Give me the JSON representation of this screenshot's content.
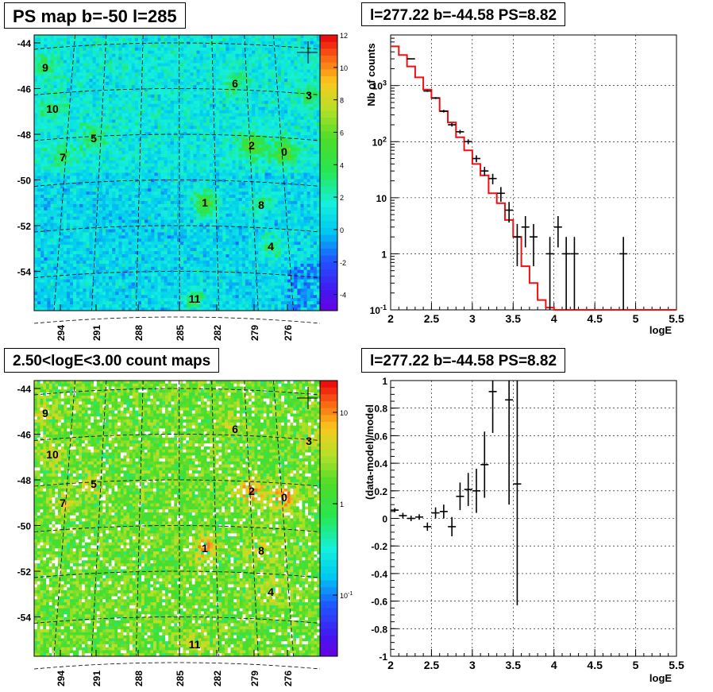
{
  "panels": {
    "top_left_title": "PS map b=-50 l=285",
    "top_right_title": "l=277.22 b=-44.58 PS=8.82",
    "bottom_left_title": "2.50<logE<3.00 count maps",
    "bottom_right_title": "l=277.22 b=-44.58 PS=8.82"
  },
  "chart_data": [
    {
      "type": "heatmap",
      "title": "PS map b=-50 l=285",
      "xlabel": "",
      "ylabel": "",
      "x_ticks": [
        "294",
        "291",
        "288",
        "285",
        "282",
        "279",
        "276"
      ],
      "y_ticks": [
        "-44",
        "-46",
        "-48",
        "-50",
        "-52",
        "-54"
      ],
      "colorbar_ticks": [
        "12",
        "10",
        "8",
        "6",
        "4",
        "2",
        "0",
        "-2",
        "-4"
      ],
      "colorbar_range": [
        -5,
        12
      ],
      "sources": [
        "0",
        "1",
        "2",
        "3",
        "4",
        "5",
        "6",
        "7",
        "8",
        "9",
        "10",
        "11"
      ]
    },
    {
      "type": "line",
      "title": "l=277.22 b=-44.58 PS=8.82",
      "xlabel": "logE",
      "ylabel": "Nb of counts",
      "yscale": "log",
      "xlim": [
        2,
        5.5
      ],
      "ylim": [
        0.1,
        8000
      ],
      "x_ticks": [
        "2",
        "2.5",
        "3",
        "3.5",
        "4",
        "4.5",
        "5",
        "5.5"
      ],
      "y_ticks": [
        "10^{-1}",
        "1",
        "10",
        "10^{2}",
        "10^{3}"
      ],
      "grid": true,
      "series": [
        {
          "kind": "data",
          "color": "#000000",
          "x": [
            2.25,
            2.45,
            2.55,
            2.65,
            2.75,
            2.85,
            2.95,
            3.05,
            3.15,
            3.25,
            3.35,
            3.45,
            3.55,
            3.65,
            3.75,
            3.95,
            4.05,
            4.15,
            4.25,
            4.85
          ],
          "y": [
            3000,
            800,
            600,
            350,
            200,
            150,
            100,
            50,
            30,
            22,
            12,
            6,
            2,
            3,
            2,
            1,
            3,
            1,
            1,
            1
          ],
          "yerr": [
            55,
            28,
            24,
            19,
            14,
            12,
            10,
            7,
            5.5,
            4.7,
            3.5,
            2.4,
            1.4,
            1.7,
            1.4,
            1,
            1.7,
            1,
            1,
            1
          ]
        },
        {
          "kind": "model",
          "color": "#ee1111",
          "step_edges": [
            2.0,
            2.1,
            2.2,
            2.3,
            2.4,
            2.5,
            2.6,
            2.7,
            2.8,
            2.9,
            3.0,
            3.1,
            3.2,
            3.3,
            3.4,
            3.5,
            3.6,
            3.7,
            3.8,
            3.9,
            4.0,
            5.5
          ],
          "step_values": [
            5000,
            3500,
            2200,
            1400,
            850,
            600,
            350,
            220,
            120,
            70,
            40,
            25,
            12,
            8,
            4,
            2,
            0.6,
            0.3,
            0.15,
            0.11,
            0.1
          ]
        }
      ]
    },
    {
      "type": "heatmap",
      "title": "2.50<logE<3.00 count maps",
      "xlabel": "",
      "ylabel": "",
      "x_ticks": [
        "294",
        "291",
        "288",
        "285",
        "282",
        "279",
        "276"
      ],
      "y_ticks": [
        "-44",
        "-46",
        "-48",
        "-50",
        "-52",
        "-54"
      ],
      "colorbar_ticks": [
        "10",
        "1",
        "10^{-1}"
      ],
      "colorbar_scale": "log",
      "sources": [
        "0",
        "1",
        "2",
        "3",
        "4",
        "5",
        "6",
        "7",
        "8",
        "9",
        "10",
        "11"
      ]
    },
    {
      "type": "scatter",
      "title": "l=277.22 b=-44.58 PS=8.82",
      "xlabel": "logE",
      "ylabel": "(data-model)/model",
      "xlim": [
        2,
        5.5
      ],
      "ylim": [
        -1,
        1
      ],
      "x_ticks": [
        "2",
        "2.5",
        "3",
        "3.5",
        "4",
        "4.5",
        "5",
        "5.5"
      ],
      "y_ticks": [
        "1",
        "0.8",
        "0.6",
        "0.4",
        "0.2",
        "0",
        "-0.2",
        "-0.4",
        "-0.6",
        "-0.8",
        "-1"
      ],
      "grid": true,
      "series": [
        {
          "kind": "residual",
          "color": "#000000",
          "x": [
            2.05,
            2.15,
            2.25,
            2.35,
            2.45,
            2.55,
            2.65,
            2.75,
            2.85,
            2.95,
            3.05,
            3.15,
            3.25,
            3.45,
            3.55
          ],
          "y": [
            0.06,
            0.02,
            0.0,
            0.01,
            -0.06,
            0.04,
            0.05,
            -0.06,
            0.16,
            0.21,
            0.2,
            0.39,
            0.92,
            0.86,
            0.25
          ],
          "yerr": [
            0.015,
            0.02,
            0.02,
            0.02,
            0.03,
            0.04,
            0.05,
            0.07,
            0.1,
            0.12,
            0.16,
            0.24,
            0.3,
            0.76,
            0.88
          ]
        }
      ]
    }
  ]
}
